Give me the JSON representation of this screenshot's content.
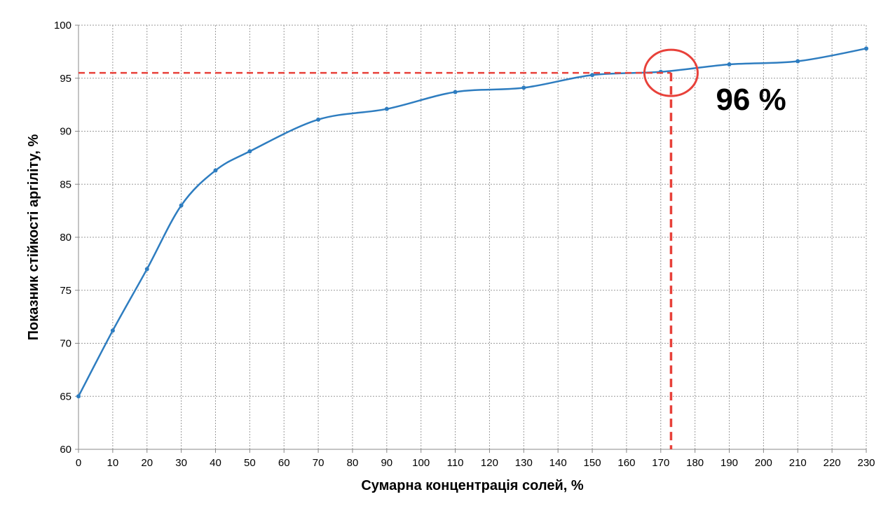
{
  "chart_data": {
    "type": "line",
    "x_label": "Сумарна концентрація солей, %",
    "y_label": "Показник стійкості аргіліту, %",
    "x": [
      0,
      10,
      20,
      30,
      40,
      50,
      70,
      90,
      110,
      130,
      150,
      170,
      190,
      210,
      230
    ],
    "series": [
      {
        "color": "#2e7dc0",
        "values": [
          65,
          71.2,
          77,
          83,
          86.3,
          88.1,
          91.1,
          92.1,
          93.7,
          94.1,
          95.3,
          95.6,
          96.3,
          96.6,
          97.8
        ]
      }
    ],
    "xlim": [
      0,
      230
    ],
    "xticks": [
      0,
      10,
      20,
      30,
      40,
      50,
      60,
      70,
      80,
      90,
      100,
      110,
      120,
      130,
      140,
      150,
      160,
      170,
      180,
      190,
      200,
      210,
      220,
      230
    ],
    "ylim": [
      60,
      100
    ],
    "yticks": [
      60,
      65,
      70,
      75,
      80,
      85,
      90,
      95,
      100
    ],
    "grid": true,
    "reference": {
      "x": 173,
      "y": 95.5,
      "color": "#e8413a",
      "label": "96 %"
    }
  }
}
